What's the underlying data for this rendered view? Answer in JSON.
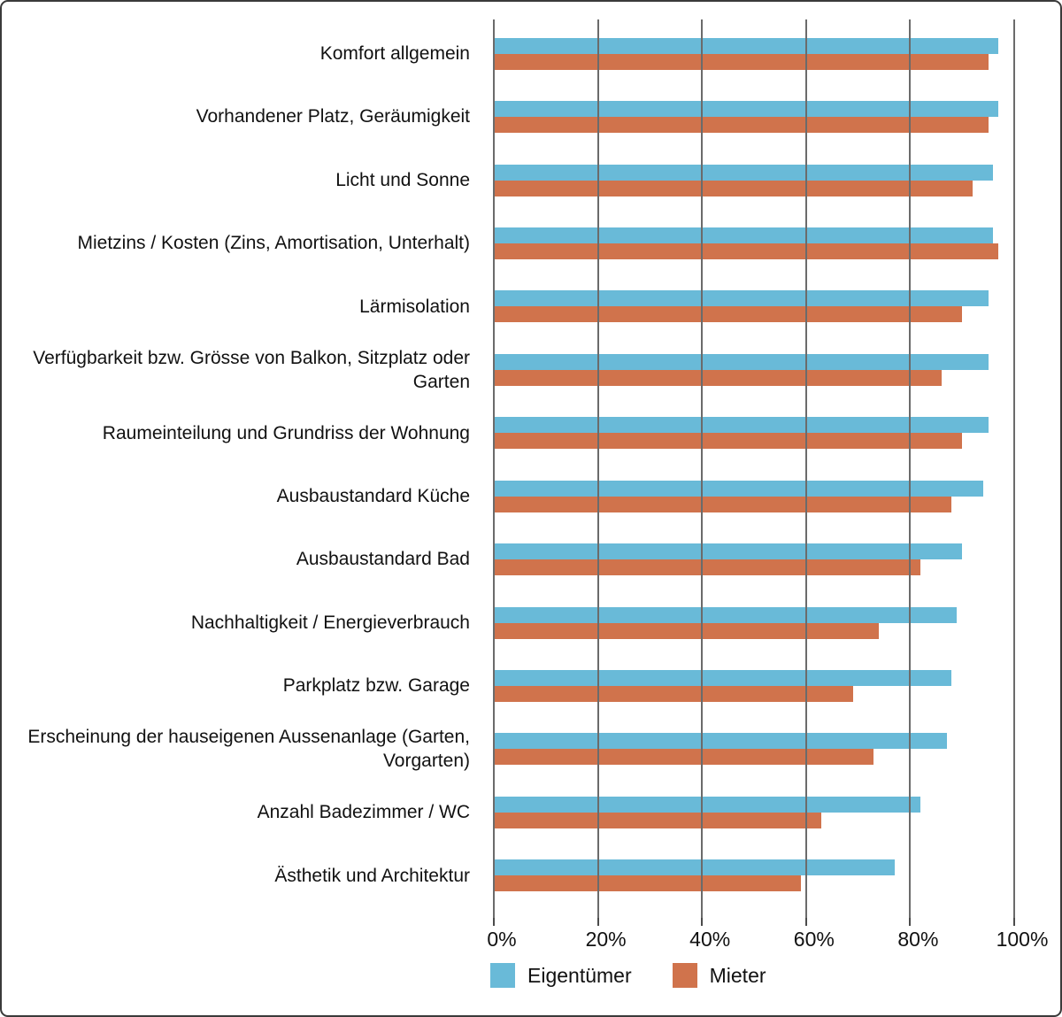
{
  "chart_data": {
    "type": "bar",
    "orientation": "horizontal",
    "title": "",
    "xlabel": "",
    "ylabel": "",
    "xlim": [
      0,
      100
    ],
    "x_ticks": [
      "0%",
      "20%",
      "40%",
      "60%",
      "80%",
      "100%"
    ],
    "x_tick_values": [
      0,
      20,
      40,
      60,
      80,
      100
    ],
    "grid": true,
    "legend_position": "bottom",
    "categories": [
      "Komfort allgemein",
      "Vorhandener Platz, Geräumigkeit",
      "Licht und Sonne",
      "Mietzins / Kosten (Zins, Amortisation, Unterhalt)",
      "Lärmisolation",
      "Verfügbarkeit bzw. Grösse von Balkon, Sitzplatz oder Garten",
      "Raumeinteilung und Grundriss der Wohnung",
      "Ausbaustandard Küche",
      "Ausbaustandard Bad",
      "Nachhaltigkeit / Energieverbrauch",
      "Parkplatz bzw. Garage",
      "Erscheinung der hauseigenen Aussenanlage (Garten, Vorgarten)",
      "Anzahl Badezimmer / WC",
      "Ästhetik und Architektur"
    ],
    "series": [
      {
        "name": "Eigentümer",
        "color": "#69BAD8",
        "values": [
          97,
          97,
          96,
          96,
          95,
          95,
          95,
          94,
          90,
          89,
          88,
          87,
          82,
          77
        ]
      },
      {
        "name": "Mieter",
        "color": "#D0734C",
        "values": [
          95,
          95,
          92,
          97,
          90,
          86,
          90,
          88,
          82,
          74,
          69,
          73,
          63,
          59
        ]
      }
    ]
  },
  "legend": {
    "items": [
      {
        "label": "Eigentümer",
        "color": "#69BAD8"
      },
      {
        "label": "Mieter",
        "color": "#D0734C"
      }
    ]
  },
  "colors": {
    "background": "#ffffff",
    "frame_border": "#3a3a3a",
    "gridline": "#6b6b6b",
    "text": "#111111"
  }
}
